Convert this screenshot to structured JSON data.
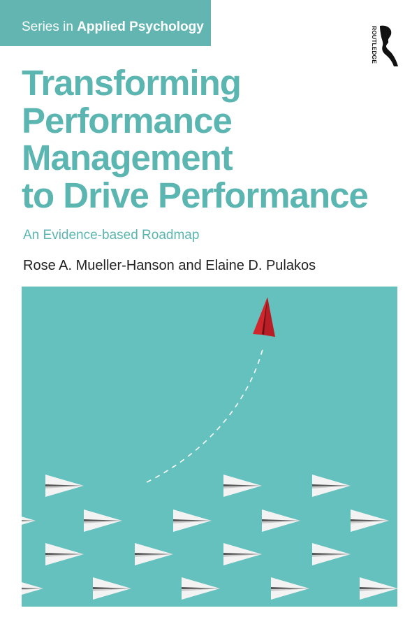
{
  "series": {
    "prefix": "Series in",
    "name": "Applied Psychology"
  },
  "publisher": {
    "name": "ROUTLEDGE",
    "logo_icon": "routledge-profile-r-logo"
  },
  "title_lines": [
    "Transforming",
    "Performance",
    "Management",
    "to Drive Performance"
  ],
  "subtitle": "An Evidence-based Roadmap",
  "authors": "Rose A. Mueller-Hanson and Elaine D. Pulakos",
  "colors": {
    "teal_text": "#5bb5b0",
    "teal_band": "#62b5b1",
    "art_background": "#64c1bd",
    "red_plane": "#d0262e",
    "white_plane": "#f3f3f3"
  },
  "illustration": {
    "icons": [
      "red-paper-plane-icon",
      "white-paper-plane-icon",
      "dashed-flight-path"
    ]
  }
}
